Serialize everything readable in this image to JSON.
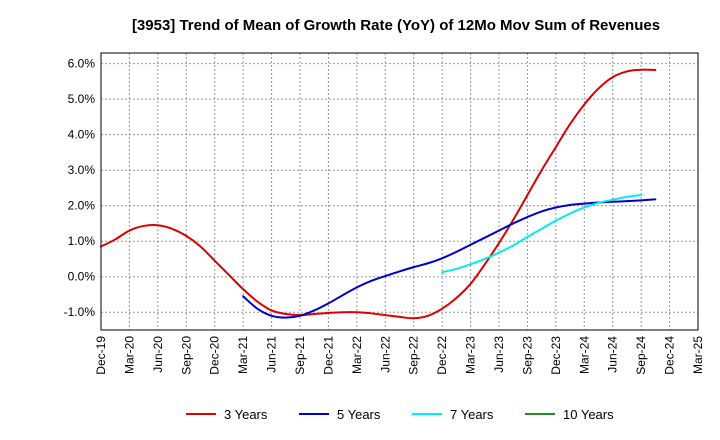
{
  "chart_data": {
    "type": "line",
    "title": "[3953]  Trend of Mean of Growth Rate (YoY) of 12Mo Mov Sum of Revenues",
    "xlabel": "",
    "ylabel": "",
    "ylim": [
      -1.5,
      6.3
    ],
    "y_ticks": [
      -1.0,
      0.0,
      1.0,
      2.0,
      3.0,
      4.0,
      5.0,
      6.0
    ],
    "y_tick_labels": [
      "-1.0%",
      "0.0%",
      "1.0%",
      "2.0%",
      "3.0%",
      "4.0%",
      "5.0%",
      "6.0%"
    ],
    "x_tick_labels": [
      "Dec-19",
      "Mar-20",
      "Jun-20",
      "Sep-20",
      "Dec-20",
      "Mar-21",
      "Jun-21",
      "Sep-21",
      "Dec-21",
      "Mar-22",
      "Jun-22",
      "Sep-22",
      "Dec-22",
      "Mar-23",
      "Jun-23",
      "Sep-23",
      "Dec-23",
      "Mar-24",
      "Jun-24",
      "Sep-24",
      "Dec-24",
      "Mar-25"
    ],
    "grid": true,
    "legend_position": "bottom",
    "series": [
      {
        "name": "3 Years",
        "color": "#dd0000",
        "points": [
          [
            0,
            0.85
          ],
          [
            0.5,
            1.05
          ],
          [
            1,
            1.3
          ],
          [
            1.5,
            1.43
          ],
          [
            2,
            1.45
          ],
          [
            2.5,
            1.35
          ],
          [
            3,
            1.15
          ],
          [
            3.5,
            0.85
          ],
          [
            4,
            0.45
          ],
          [
            4.5,
            0.05
          ],
          [
            5,
            -0.35
          ],
          [
            5.5,
            -0.7
          ],
          [
            6,
            -0.95
          ],
          [
            6.5,
            -1.05
          ],
          [
            7,
            -1.08
          ],
          [
            7.5,
            -1.05
          ],
          [
            8,
            -1.02
          ],
          [
            8.5,
            -1.0
          ],
          [
            9,
            -1.0
          ],
          [
            9.5,
            -1.03
          ],
          [
            10,
            -1.08
          ],
          [
            10.5,
            -1.13
          ],
          [
            11,
            -1.17
          ],
          [
            11.5,
            -1.1
          ],
          [
            12,
            -0.9
          ],
          [
            12.5,
            -0.6
          ],
          [
            13,
            -0.2
          ],
          [
            13.5,
            0.35
          ],
          [
            14,
            0.95
          ],
          [
            14.5,
            1.6
          ],
          [
            15,
            2.3
          ],
          [
            15.5,
            3.0
          ],
          [
            16,
            3.65
          ],
          [
            16.5,
            4.3
          ],
          [
            17,
            4.85
          ],
          [
            17.5,
            5.3
          ],
          [
            18,
            5.62
          ],
          [
            18.5,
            5.78
          ],
          [
            19,
            5.83
          ],
          [
            19.5,
            5.82
          ]
        ]
      },
      {
        "name": "5 Years",
        "color": "#0000cc",
        "points": [
          [
            5,
            -0.55
          ],
          [
            5.5,
            -0.9
          ],
          [
            6,
            -1.1
          ],
          [
            6.5,
            -1.15
          ],
          [
            7,
            -1.1
          ],
          [
            7.5,
            -0.95
          ],
          [
            8,
            -0.75
          ],
          [
            8.5,
            -0.52
          ],
          [
            9,
            -0.3
          ],
          [
            9.5,
            -0.12
          ],
          [
            10,
            0.02
          ],
          [
            10.5,
            0.15
          ],
          [
            11,
            0.27
          ],
          [
            11.5,
            0.38
          ],
          [
            12,
            0.52
          ],
          [
            12.5,
            0.7
          ],
          [
            13,
            0.9
          ],
          [
            13.5,
            1.1
          ],
          [
            14,
            1.3
          ],
          [
            14.5,
            1.5
          ],
          [
            15,
            1.68
          ],
          [
            15.5,
            1.84
          ],
          [
            16,
            1.95
          ],
          [
            16.5,
            2.02
          ],
          [
            17,
            2.06
          ],
          [
            17.5,
            2.09
          ],
          [
            18,
            2.11
          ],
          [
            18.5,
            2.13
          ],
          [
            19,
            2.15
          ],
          [
            19.5,
            2.18
          ]
        ]
      },
      {
        "name": "7 Years",
        "color": "#00eeee",
        "points": [
          [
            12,
            0.13
          ],
          [
            12.5,
            0.22
          ],
          [
            13,
            0.35
          ],
          [
            13.5,
            0.5
          ],
          [
            14,
            0.68
          ],
          [
            14.5,
            0.88
          ],
          [
            15,
            1.12
          ],
          [
            15.5,
            1.35
          ],
          [
            16,
            1.58
          ],
          [
            16.5,
            1.78
          ],
          [
            17,
            1.95
          ],
          [
            17.5,
            2.08
          ],
          [
            18,
            2.17
          ],
          [
            18.5,
            2.25
          ],
          [
            19,
            2.3
          ]
        ]
      },
      {
        "name": "10 Years",
        "color": "#228B22",
        "points": []
      }
    ]
  }
}
